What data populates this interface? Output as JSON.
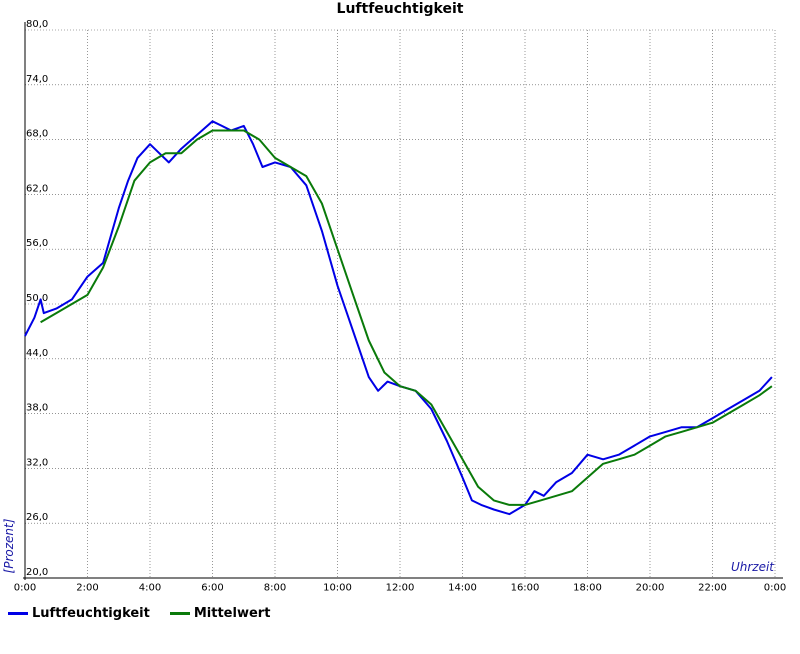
{
  "chart_data": {
    "type": "line",
    "title": "Luftfeuchtigkeit",
    "xlabel": "Uhrzeit",
    "ylabel": "[Prozent]",
    "xlim": [
      0,
      24
    ],
    "ylim": [
      20,
      80
    ],
    "x_ticks": [
      "0:00",
      "2:00",
      "4:00",
      "6:00",
      "8:00",
      "10:00",
      "12:00",
      "14:00",
      "16:00",
      "18:00",
      "20:00",
      "22:00",
      "0:00"
    ],
    "y_ticks": [
      "20,0",
      "26,0",
      "32,0",
      "38,0",
      "44,0",
      "50,0",
      "56,0",
      "62,0",
      "68,0",
      "74,0",
      "80,0"
    ],
    "grid": true,
    "legend_position": "bottom-left",
    "series": [
      {
        "name": "Luftfeuchtigkeit",
        "color": "#0000e6",
        "x": [
          0,
          0.3,
          0.5,
          0.6,
          1.0,
          1.5,
          2.0,
          2.5,
          3.0,
          3.3,
          3.6,
          4.0,
          4.3,
          4.6,
          5.0,
          5.5,
          6.0,
          6.3,
          6.6,
          7.0,
          7.3,
          7.6,
          8.0,
          8.5,
          9.0,
          9.5,
          10.0,
          10.3,
          10.6,
          11.0,
          11.3,
          11.6,
          12.0,
          12.5,
          13.0,
          13.5,
          14.0,
          14.3,
          14.6,
          15.0,
          15.5,
          16.0,
          16.3,
          16.6,
          17.0,
          17.5,
          18.0,
          18.5,
          19.0,
          19.5,
          20.0,
          20.5,
          21.0,
          21.5,
          22.0,
          22.5,
          23.0,
          23.5,
          23.9
        ],
        "values": [
          46.5,
          48.5,
          50.5,
          49.0,
          49.5,
          50.5,
          53.0,
          54.5,
          60.5,
          63.5,
          66.0,
          67.5,
          66.5,
          65.5,
          67.0,
          68.5,
          70.0,
          69.5,
          69.0,
          69.5,
          67.5,
          65.0,
          65.5,
          65.0,
          63.0,
          58.0,
          52.0,
          49.0,
          46.0,
          42.0,
          40.5,
          41.5,
          41.0,
          40.5,
          38.5,
          35.0,
          31.0,
          28.5,
          28.0,
          27.5,
          27.0,
          28.0,
          29.5,
          29.0,
          30.5,
          31.5,
          33.5,
          33.0,
          33.5,
          34.5,
          35.5,
          36.0,
          36.5,
          36.5,
          37.5,
          38.5,
          39.5,
          40.5,
          42.0
        ]
      },
      {
        "name": "Mittelwert",
        "color": "#0a7a0a",
        "x": [
          0.5,
          1.0,
          1.5,
          2.0,
          2.5,
          3.0,
          3.5,
          4.0,
          4.5,
          5.0,
          5.5,
          6.0,
          6.5,
          7.0,
          7.5,
          8.0,
          8.5,
          9.0,
          9.5,
          10.0,
          10.5,
          11.0,
          11.5,
          12.0,
          12.5,
          13.0,
          13.5,
          14.0,
          14.5,
          15.0,
          15.5,
          16.0,
          16.5,
          17.0,
          17.5,
          18.0,
          18.5,
          19.0,
          19.5,
          20.0,
          20.5,
          21.0,
          21.5,
          22.0,
          22.5,
          23.0,
          23.5,
          23.9
        ],
        "values": [
          48.0,
          49.0,
          50.0,
          51.0,
          54.0,
          58.5,
          63.5,
          65.5,
          66.5,
          66.5,
          68.0,
          69.0,
          69.0,
          69.0,
          68.0,
          66.0,
          65.0,
          64.0,
          61.0,
          56.0,
          51.0,
          46.0,
          42.5,
          41.0,
          40.5,
          39.0,
          36.0,
          33.0,
          30.0,
          28.5,
          28.0,
          28.0,
          28.5,
          29.0,
          29.5,
          31.0,
          32.5,
          33.0,
          33.5,
          34.5,
          35.5,
          36.0,
          36.5,
          37.0,
          38.0,
          39.0,
          40.0,
          41.0
        ]
      }
    ]
  }
}
